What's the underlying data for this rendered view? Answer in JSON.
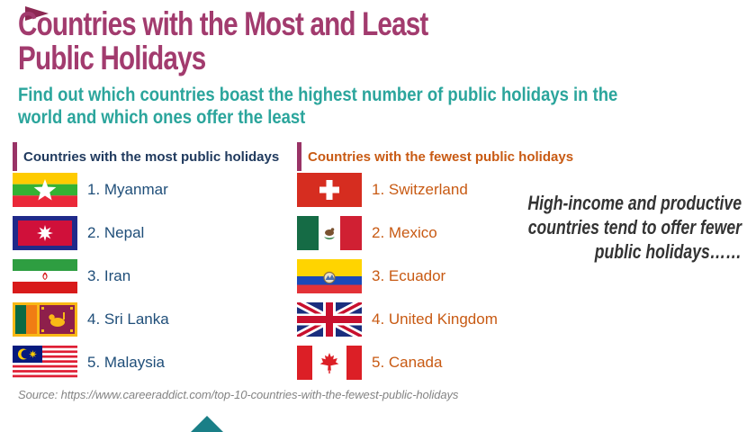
{
  "page": {
    "title_line1": "Countries with the Most and Least",
    "title_line2": "Public Holidays",
    "subtitle_line1": "Find out which countries boast the highest number of public holidays in the",
    "subtitle_line2": "world and which ones offer the least",
    "note_line1": "High-income and productive",
    "note_line2": "countries tend to offer fewer",
    "note_line3": "public holidays……",
    "source": "Source: https://www.careeraddict.com/top-10-countries-with-the-fewest-public-holidays"
  },
  "colors": {
    "title": "#A23B6E",
    "subtitle": "#2BA59C",
    "accent_bar": "#993366",
    "most_header": "#203A5E",
    "most_item": "#1F4E79",
    "fewest": "#C85A13",
    "note": "#333333",
    "source": "#848484",
    "corner_top": "#8C2953",
    "corner_bottom": "#1A7F87"
  },
  "columns": {
    "most": {
      "header": "Countries with the most public holidays",
      "items": [
        {
          "label": "1. Myanmar",
          "flag": "myanmar"
        },
        {
          "label": "2. Nepal",
          "flag": "nepal"
        },
        {
          "label": "3. Iran",
          "flag": "iran"
        },
        {
          "label": "4. Sri Lanka",
          "flag": "sri-lanka"
        },
        {
          "label": "5. Malaysia",
          "flag": "malaysia"
        }
      ]
    },
    "fewest": {
      "header": "Countries with the fewest public holidays",
      "items": [
        {
          "label": "1. Switzerland",
          "flag": "switzerland"
        },
        {
          "label": "2. Mexico",
          "flag": "mexico"
        },
        {
          "label": "3. Ecuador",
          "flag": "ecuador"
        },
        {
          "label": "4. United Kingdom",
          "flag": "united-kingdom"
        },
        {
          "label": "5. Canada",
          "flag": "canada"
        }
      ]
    }
  },
  "chart_data": [
    {
      "type": "table",
      "title": "Countries with the most public holidays",
      "categories": [
        "1",
        "2",
        "3",
        "4",
        "5"
      ],
      "values": [
        "Myanmar",
        "Nepal",
        "Iran",
        "Sri Lanka",
        "Malaysia"
      ]
    },
    {
      "type": "table",
      "title": "Countries with the fewest public holidays",
      "categories": [
        "1",
        "2",
        "3",
        "4",
        "5"
      ],
      "values": [
        "Switzerland",
        "Mexico",
        "Ecuador",
        "United Kingdom",
        "Canada"
      ]
    }
  ]
}
